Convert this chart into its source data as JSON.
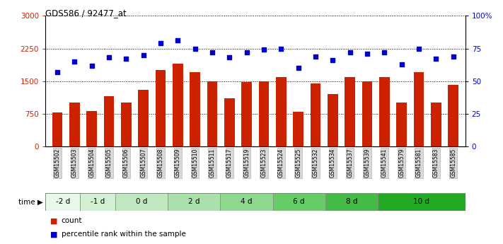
{
  "title": "GDS586 / 92477_at",
  "samples": [
    "GSM15502",
    "GSM15503",
    "GSM15504",
    "GSM15505",
    "GSM15506",
    "GSM15507",
    "GSM15508",
    "GSM15509",
    "GSM15510",
    "GSM15511",
    "GSM15517",
    "GSM15519",
    "GSM15523",
    "GSM15524",
    "GSM15525",
    "GSM15532",
    "GSM15534",
    "GSM15537",
    "GSM15539",
    "GSM15541",
    "GSM15579",
    "GSM15581",
    "GSM15583",
    "GSM15585"
  ],
  "counts": [
    780,
    1000,
    820,
    1150,
    1000,
    1300,
    1750,
    1900,
    1700,
    1500,
    1100,
    1480,
    1490,
    1600,
    800,
    1450,
    1200,
    1600,
    1500,
    1600,
    1000,
    1700,
    1000,
    1420
  ],
  "percentiles": [
    57,
    65,
    62,
    68,
    67,
    70,
    79,
    81,
    75,
    72,
    68,
    72,
    74,
    75,
    60,
    69,
    66,
    72,
    71,
    72,
    63,
    75,
    67,
    69
  ],
  "time_groups": [
    {
      "label": "-2 d",
      "count": 2,
      "color": "#e8f8e8"
    },
    {
      "label": "-1 d",
      "count": 2,
      "color": "#d4f0d4"
    },
    {
      "label": "0 d",
      "count": 3,
      "color": "#c0e8c0"
    },
    {
      "label": "2 d",
      "count": 3,
      "color": "#aae0aa"
    },
    {
      "label": "4 d",
      "count": 3,
      "color": "#8ed88e"
    },
    {
      "label": "6 d",
      "count": 3,
      "color": "#66cc66"
    },
    {
      "label": "8 d",
      "count": 3,
      "color": "#44bb44"
    },
    {
      "label": "10 d",
      "count": 5,
      "color": "#22aa22"
    }
  ],
  "ylim_left": [
    0,
    3000
  ],
  "ylim_right": [
    0,
    100
  ],
  "yticks_left": [
    0,
    750,
    1500,
    2250,
    3000
  ],
  "yticks_right": [
    0,
    25,
    50,
    75,
    100
  ],
  "bar_color": "#cc2200",
  "dot_color": "#0000cc",
  "bg_color": "#ffffff",
  "grid_color": "#000000",
  "xtick_box_color": "#d8d8d8",
  "legend_count_label": "count",
  "legend_pct_label": "percentile rank within the sample"
}
